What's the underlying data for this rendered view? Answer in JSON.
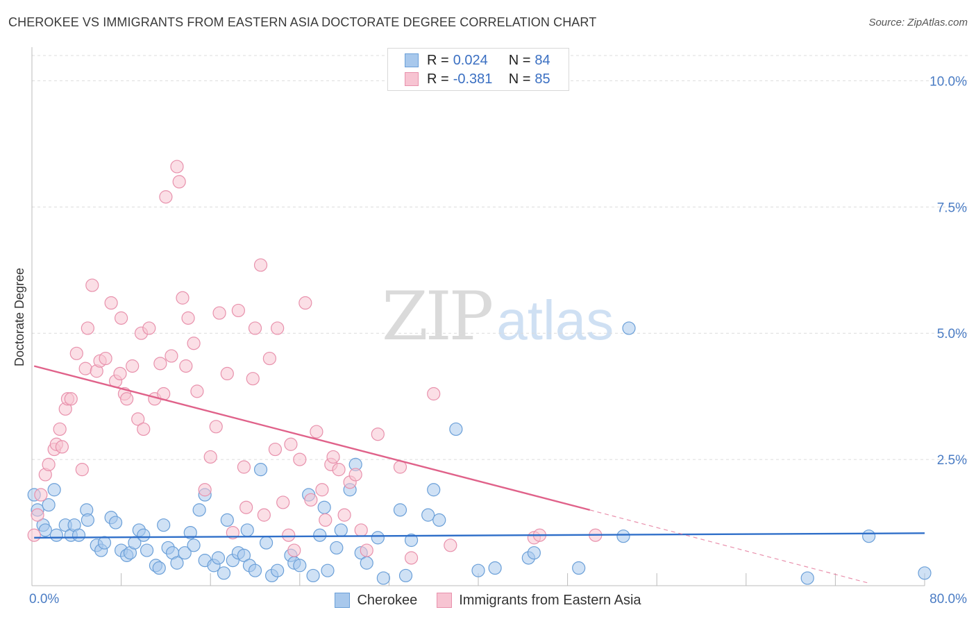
{
  "title": "CHEROKEE VS IMMIGRANTS FROM EASTERN ASIA DOCTORATE DEGREE CORRELATION CHART",
  "source": "Source: ZipAtlas.com",
  "watermark": {
    "zip": "ZIP",
    "atlas": "atlas"
  },
  "legend": {
    "rows": [
      {
        "r_label": "R =",
        "r_value": "0.024",
        "n_label": "N =",
        "n_value": "84",
        "color": "#a8c8ec",
        "border": "#6a9fd8"
      },
      {
        "r_label": "R =",
        "r_value": "-0.381",
        "n_label": "N =",
        "n_value": "85",
        "color": "#f7c4d2",
        "border": "#e891ac"
      }
    ]
  },
  "chart_data": {
    "type": "scatter",
    "title": "CHEROKEE VS IMMIGRANTS FROM EASTERN ASIA DOCTORATE DEGREE CORRELATION CHART",
    "xlabel": "",
    "ylabel": "Doctorate Degree",
    "xlim": [
      0,
      80
    ],
    "ylim": [
      0,
      10.5
    ],
    "x_tick_labels": {
      "min": "0.0%",
      "max": "80.0%"
    },
    "y_ticks": [
      2.5,
      5.0,
      7.5,
      10.0
    ],
    "y_tick_labels": [
      "2.5%",
      "5.0%",
      "7.5%",
      "10.0%"
    ],
    "grid": "horizontal dashed",
    "series": [
      {
        "name": "Cherokee",
        "color": "#a8c8ec",
        "stroke": "#6a9fd8",
        "trend_color": "#2f6fc9",
        "trend": {
          "x0": 0.2,
          "y0": 0.95,
          "x1": 80,
          "y1": 1.04
        },
        "points": [
          [
            0.2,
            1.8
          ],
          [
            0.5,
            1.5
          ],
          [
            1.0,
            1.2
          ],
          [
            1.2,
            1.1
          ],
          [
            1.5,
            1.6
          ],
          [
            2.0,
            1.9
          ],
          [
            2.2,
            1.0
          ],
          [
            3.0,
            1.2
          ],
          [
            3.5,
            1.0
          ],
          [
            3.8,
            1.2
          ],
          [
            4.2,
            1.0
          ],
          [
            4.9,
            1.5
          ],
          [
            5.0,
            1.3
          ],
          [
            5.8,
            0.8
          ],
          [
            6.2,
            0.7
          ],
          [
            6.5,
            0.85
          ],
          [
            7.1,
            1.35
          ],
          [
            7.5,
            1.25
          ],
          [
            8.0,
            0.7
          ],
          [
            8.5,
            0.6
          ],
          [
            8.8,
            0.65
          ],
          [
            9.2,
            0.85
          ],
          [
            9.6,
            1.1
          ],
          [
            10.0,
            1.0
          ],
          [
            10.3,
            0.7
          ],
          [
            11.1,
            0.4
          ],
          [
            11.4,
            0.35
          ],
          [
            11.8,
            1.2
          ],
          [
            12.2,
            0.75
          ],
          [
            12.6,
            0.65
          ],
          [
            13.0,
            0.45
          ],
          [
            13.7,
            0.65
          ],
          [
            14.2,
            1.05
          ],
          [
            14.5,
            0.8
          ],
          [
            15.0,
            1.5
          ],
          [
            15.5,
            1.8
          ],
          [
            15.5,
            0.5
          ],
          [
            16.3,
            0.4
          ],
          [
            16.7,
            0.55
          ],
          [
            17.2,
            0.25
          ],
          [
            17.5,
            1.3
          ],
          [
            18.0,
            0.5
          ],
          [
            18.5,
            0.65
          ],
          [
            19.0,
            0.6
          ],
          [
            19.3,
            1.1
          ],
          [
            19.5,
            0.4
          ],
          [
            20.0,
            0.3
          ],
          [
            20.5,
            2.3
          ],
          [
            21.0,
            0.85
          ],
          [
            21.5,
            0.2
          ],
          [
            22.0,
            0.3
          ],
          [
            23.2,
            0.6
          ],
          [
            23.5,
            0.45
          ],
          [
            24.0,
            0.4
          ],
          [
            24.8,
            1.8
          ],
          [
            25.2,
            0.2
          ],
          [
            25.8,
            1.0
          ],
          [
            26.2,
            1.55
          ],
          [
            26.5,
            0.3
          ],
          [
            27.3,
            0.75
          ],
          [
            27.7,
            1.1
          ],
          [
            28.5,
            1.9
          ],
          [
            29.0,
            2.4
          ],
          [
            29.5,
            0.65
          ],
          [
            30.0,
            0.45
          ],
          [
            31.0,
            0.95
          ],
          [
            31.5,
            0.15
          ],
          [
            33.0,
            1.5
          ],
          [
            33.5,
            0.2
          ],
          [
            34.0,
            0.9
          ],
          [
            35.5,
            1.4
          ],
          [
            36.0,
            1.9
          ],
          [
            36.5,
            1.3
          ],
          [
            38.0,
            3.1
          ],
          [
            40.0,
            0.3
          ],
          [
            41.5,
            0.35
          ],
          [
            44.5,
            0.55
          ],
          [
            45.0,
            0.65
          ],
          [
            49.0,
            0.35
          ],
          [
            53.0,
            0.98
          ],
          [
            53.5,
            5.1
          ],
          [
            69.5,
            0.15
          ],
          [
            75.0,
            0.98
          ],
          [
            80.0,
            0.25
          ]
        ]
      },
      {
        "name": "Immigrants from Eastern Asia",
        "color": "#f7c4d2",
        "stroke": "#e891ac",
        "trend_color": "#e0628a",
        "trend": {
          "x0": 0.2,
          "y0": 4.35,
          "x1": 50,
          "y1": 1.5
        },
        "trend_dashed": {
          "x0": 50,
          "y0": 1.5,
          "x1": 75,
          "y1": 0.05
        },
        "points": [
          [
            0.2,
            1.0
          ],
          [
            0.5,
            1.4
          ],
          [
            0.8,
            1.8
          ],
          [
            1.2,
            2.2
          ],
          [
            1.5,
            2.4
          ],
          [
            2.0,
            2.7
          ],
          [
            2.2,
            2.8
          ],
          [
            2.5,
            3.1
          ],
          [
            2.7,
            2.75
          ],
          [
            3.0,
            3.5
          ],
          [
            3.2,
            3.7
          ],
          [
            3.5,
            3.7
          ],
          [
            4.0,
            4.6
          ],
          [
            4.5,
            2.3
          ],
          [
            4.8,
            4.3
          ],
          [
            5.0,
            5.1
          ],
          [
            5.4,
            5.95
          ],
          [
            5.8,
            4.25
          ],
          [
            6.1,
            4.45
          ],
          [
            6.6,
            4.5
          ],
          [
            7.1,
            5.6
          ],
          [
            7.5,
            4.05
          ],
          [
            7.9,
            4.2
          ],
          [
            8.0,
            5.3
          ],
          [
            8.3,
            3.8
          ],
          [
            8.5,
            3.7
          ],
          [
            9.0,
            4.35
          ],
          [
            9.5,
            3.3
          ],
          [
            9.8,
            5.0
          ],
          [
            10.0,
            3.1
          ],
          [
            10.5,
            5.1
          ],
          [
            11.0,
            3.7
          ],
          [
            11.5,
            4.4
          ],
          [
            11.8,
            3.8
          ],
          [
            12.0,
            7.7
          ],
          [
            12.5,
            4.55
          ],
          [
            13.0,
            8.3
          ],
          [
            13.2,
            8.0
          ],
          [
            13.5,
            5.7
          ],
          [
            13.8,
            4.35
          ],
          [
            14.0,
            5.3
          ],
          [
            14.5,
            4.8
          ],
          [
            14.8,
            3.85
          ],
          [
            15.5,
            1.9
          ],
          [
            16.0,
            2.55
          ],
          [
            16.5,
            3.15
          ],
          [
            16.8,
            5.4
          ],
          [
            17.5,
            4.2
          ],
          [
            18.0,
            1.05
          ],
          [
            18.5,
            5.45
          ],
          [
            19.0,
            2.35
          ],
          [
            19.2,
            1.55
          ],
          [
            19.8,
            4.1
          ],
          [
            20.0,
            5.1
          ],
          [
            20.5,
            6.35
          ],
          [
            20.8,
            1.4
          ],
          [
            21.3,
            4.5
          ],
          [
            21.8,
            2.7
          ],
          [
            22.0,
            5.1
          ],
          [
            22.5,
            1.65
          ],
          [
            23.0,
            1.0
          ],
          [
            23.2,
            2.8
          ],
          [
            23.5,
            0.7
          ],
          [
            24.0,
            2.5
          ],
          [
            24.5,
            5.6
          ],
          [
            25.0,
            1.7
          ],
          [
            25.5,
            3.05
          ],
          [
            26.0,
            1.9
          ],
          [
            26.3,
            1.3
          ],
          [
            26.8,
            2.4
          ],
          [
            27.0,
            2.55
          ],
          [
            27.5,
            2.3
          ],
          [
            28.0,
            1.4
          ],
          [
            28.5,
            2.05
          ],
          [
            29.0,
            2.2
          ],
          [
            29.5,
            1.1
          ],
          [
            30.0,
            0.7
          ],
          [
            31.0,
            3.0
          ],
          [
            33.0,
            2.35
          ],
          [
            34.0,
            0.55
          ],
          [
            36.0,
            3.8
          ],
          [
            37.5,
            0.8
          ],
          [
            45.0,
            0.95
          ],
          [
            45.5,
            1.0
          ],
          [
            50.5,
            1.0
          ]
        ]
      }
    ]
  }
}
